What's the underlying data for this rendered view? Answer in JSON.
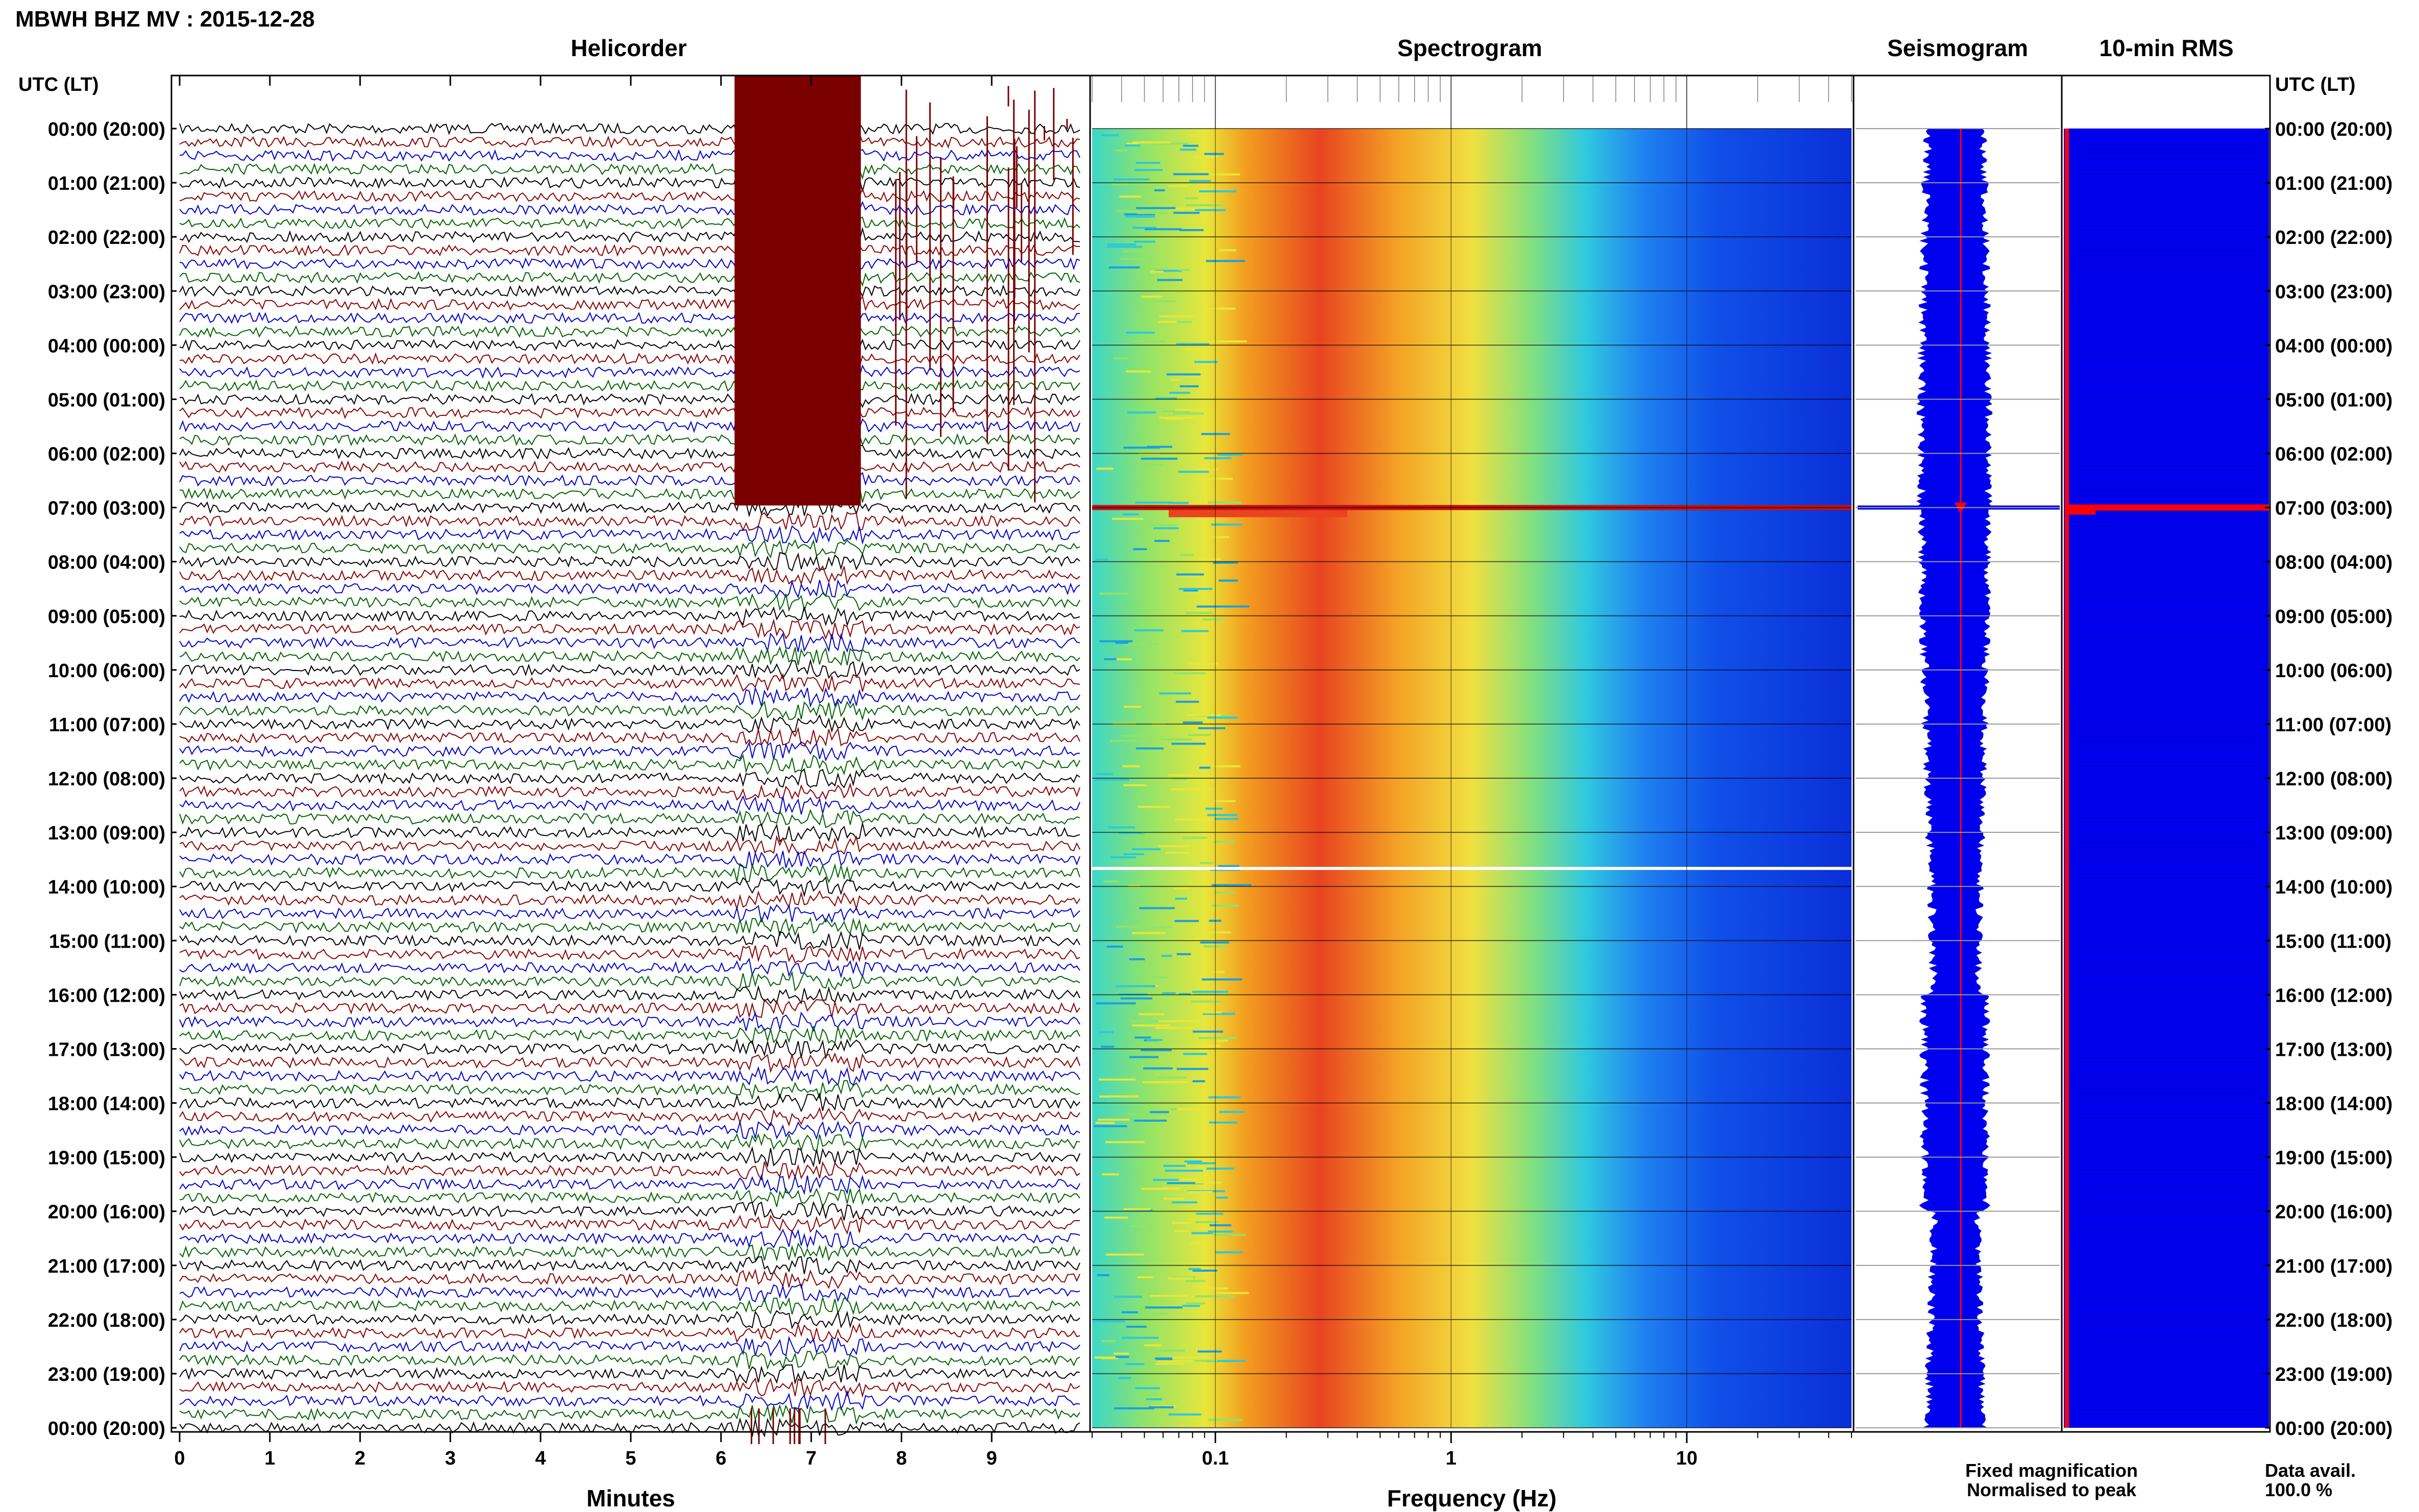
{
  "header": {
    "title": "MBWH BHZ MV : 2015-12-28"
  },
  "panels": {
    "helicorder": "Helicorder",
    "spectrogram": "Spectrogram",
    "seismogram": "Seismogram",
    "rms": "10-min RMS"
  },
  "axes": {
    "left_header": "UTC (LT)",
    "right_header": "UTC (LT)",
    "minutes_label": "Minutes",
    "frequency_label": "Frequency (Hz)"
  },
  "legend": {
    "fixed": "Fixed magnification",
    "normalised": "Normalised to peak",
    "fixed_color": "#0000ff",
    "normalised_color": "#ff0000"
  },
  "availability": {
    "label": "Data avail.",
    "value": "100.0 %"
  },
  "chart_data": {
    "type": "heatmap",
    "time_labels": [
      "00:00 (20:00)",
      "01:00 (21:00)",
      "02:00 (22:00)",
      "03:00 (23:00)",
      "04:00 (00:00)",
      "05:00 (01:00)",
      "06:00 (02:00)",
      "07:00 (03:00)",
      "08:00 (04:00)",
      "09:00 (05:00)",
      "10:00 (06:00)",
      "11:00 (07:00)",
      "12:00 (08:00)",
      "13:00 (09:00)",
      "14:00 (10:00)",
      "15:00 (11:00)",
      "16:00 (12:00)",
      "17:00 (13:00)",
      "18:00 (14:00)",
      "19:00 (15:00)",
      "20:00 (16:00)",
      "21:00 (17:00)",
      "22:00 (18:00)",
      "23:00 (19:00)",
      "00:00 (20:00)"
    ],
    "minute_ticks": [
      "0",
      "1",
      "2",
      "3",
      "4",
      "5",
      "6",
      "7",
      "8",
      "9"
    ],
    "minutes_range": [
      0,
      10
    ],
    "frequency_ticks": [
      "0.1",
      "1",
      "10"
    ],
    "frequency_range": [
      0.03,
      50
    ],
    "frequency_scale": "log",
    "helicorder_colors": [
      "#000000",
      "#8b0000",
      "#0000cd",
      "#006400"
    ],
    "events": [
      {
        "time_utc": "07:00",
        "description": "large event, saturated trace"
      }
    ],
    "data_gap_utc": "13:40",
    "rms_peak_utc": "07:00"
  }
}
